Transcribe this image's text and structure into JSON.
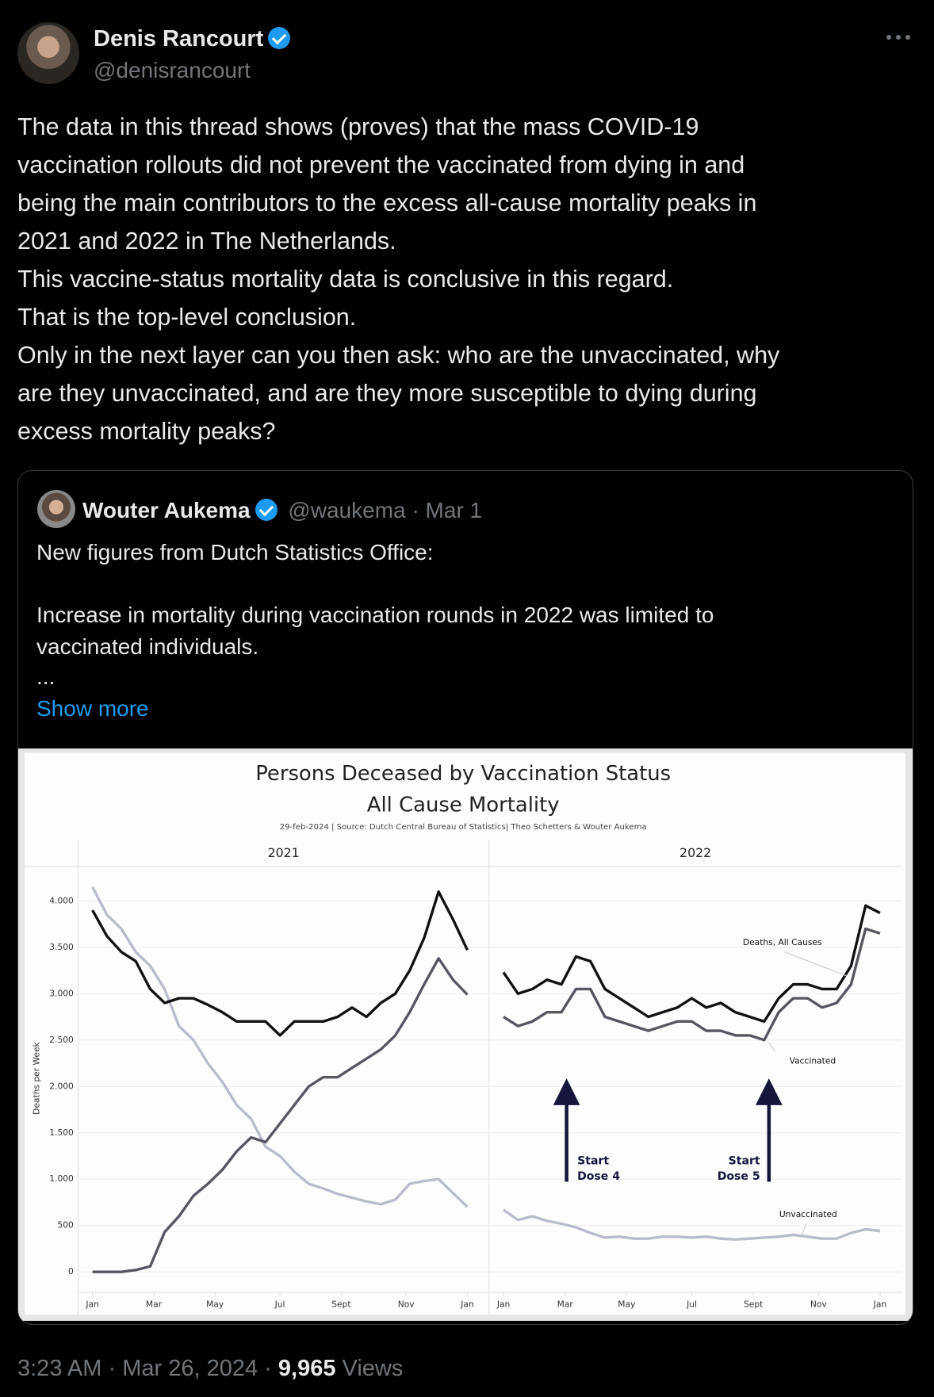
{
  "author": {
    "name": "Denis Rancourt",
    "handle": "@denisrancourt"
  },
  "body": [
    "The data in this thread shows (proves) that the mass COVID-19",
    "vaccination rollouts did not prevent the vaccinated from dying in and",
    "being the main contributors to the excess all-cause mortality peaks in",
    "2021 and 2022 in The Netherlands.",
    "This vaccine-status mortality data is conclusive in this regard.",
    "That is the top-level conclusion.",
    "Only in the next layer can you then ask: who are the unvaccinated, why",
    "are they unvaccinated, and are they more susceptible to dying during",
    "excess mortality peaks?"
  ],
  "separator": "·",
  "quoted": {
    "name": "Wouter Aukema",
    "handle": "@waukema",
    "date": "Mar 1",
    "lines": [
      "New figures from Dutch Statistics Office:",
      "Increase in mortality during vaccination rounds in 2022 was limited to",
      "vaccinated individuals.",
      "..."
    ],
    "show_more": "Show more"
  },
  "footer": {
    "time": "3:23 AM",
    "date": "Mar 26, 2024",
    "views": "9,965",
    "views_label": "Views"
  },
  "chart_data": {
    "type": "line",
    "title": [
      "Persons Deceased by Vaccination Status",
      "All Cause Mortality"
    ],
    "subtitle": "29-feb-2024 | Source: Dutch Central Bureau of Statistics| Theo Schetters & Wouter Aukema",
    "y_label": "Deaths per Week",
    "grid": true,
    "ylim": [
      -220,
      4375
    ],
    "yticks": [
      0,
      500,
      {
        "value": 1000,
        "label": "1.000"
      },
      {
        "value": 1500,
        "label": "1.500"
      },
      {
        "value": 2000,
        "label": "2.000"
      },
      {
        "value": 2500,
        "label": "2.500"
      },
      {
        "value": 3000,
        "label": "3.000"
      },
      {
        "value": 3500,
        "label": "3.500"
      },
      {
        "value": 4000,
        "label": "4.000"
      }
    ],
    "xlim": [
      -2,
      55
    ],
    "xticks": [
      {
        "value": 0,
        "label": "Jan"
      },
      {
        "value": 8.5,
        "label": "Mar"
      },
      {
        "value": 17,
        "label": "May"
      },
      {
        "value": 26,
        "label": "Jul"
      },
      {
        "value": 34.5,
        "label": "Sept"
      },
      {
        "value": 43.5,
        "label": "Nov"
      },
      {
        "value": 52,
        "label": "Jan"
      }
    ],
    "panels": [
      {
        "title": "2021",
        "x": [
          0,
          2,
          4,
          6,
          8,
          10,
          12,
          14,
          16,
          18,
          20,
          22,
          24,
          26,
          28,
          30,
          32,
          34,
          36,
          38,
          40,
          42,
          44,
          46,
          48,
          50,
          52
        ],
        "series": [
          {
            "color": "#111111",
            "values": [
              3900,
              3620,
              3450,
              3350,
              3050,
              2900,
              2950,
              2950,
              2880,
              2800,
              2700,
              2700,
              2700,
              2550,
              2700,
              2700,
              2700,
              2750,
              2850,
              2750,
              2900,
              3000,
              3250,
              3600,
              4100,
              3800,
              3470
            ]
          },
          {
            "color": "#55565f",
            "values": [
              0,
              0,
              0,
              20,
              60,
              430,
              600,
              820,
              950,
              1100,
              1300,
              1450,
              1400,
              1600,
              1800,
              2000,
              2100,
              2100,
              2200,
              2300,
              2400,
              2550,
              2800,
              3100,
              3380,
              3150,
              2990
            ]
          },
          {
            "color": "#b9bdcb",
            "values": [
              4150,
              3850,
              3700,
              3450,
              3300,
              3050,
              2650,
              2500,
              2250,
              2050,
              1800,
              1650,
              1350,
              1250,
              1080,
              950,
              900,
              840,
              800,
              760,
              730,
              780,
              950,
              980,
              1000,
              850,
              700
            ]
          }
        ]
      },
      {
        "title": "2022",
        "x": [
          0,
          2,
          4,
          6,
          8,
          10,
          12,
          14,
          16,
          18,
          20,
          22,
          24,
          26,
          28,
          30,
          32,
          34,
          36,
          38,
          40,
          42,
          44,
          46,
          48,
          50,
          52
        ],
        "series": [
          {
            "name": "Deaths, All Causes",
            "color": "#111111",
            "values": [
              3230,
              3000,
              3050,
              3150,
              3100,
              3400,
              3350,
              3050,
              2950,
              2850,
              2750,
              2800,
              2850,
              2950,
              2850,
              2900,
              2800,
              2750,
              2700,
              2950,
              3100,
              3100,
              3050,
              3050,
              3300,
              3950,
              3870
            ]
          },
          {
            "name": "Vaccinated",
            "color": "#55565f",
            "values": [
              2750,
              2650,
              2700,
              2800,
              2800,
              3050,
              3050,
              2750,
              2700,
              2650,
              2600,
              2650,
              2700,
              2700,
              2600,
              2600,
              2550,
              2550,
              2500,
              2800,
              2950,
              2950,
              2850,
              2900,
              3100,
              3700,
              3650
            ]
          },
          {
            "name": "Unvaccinated",
            "color": "#b9bdcb",
            "values": [
              670,
              560,
              600,
              550,
              520,
              480,
              420,
              370,
              380,
              360,
              360,
              380,
              380,
              370,
              380,
              360,
              350,
              360,
              370,
              380,
              400,
              380,
              360,
              360,
              420,
              460,
              440
            ]
          }
        ],
        "annotations": [
          "Start",
          "Dose 4",
          "Start",
          "Dose 5"
        ]
      }
    ]
  }
}
